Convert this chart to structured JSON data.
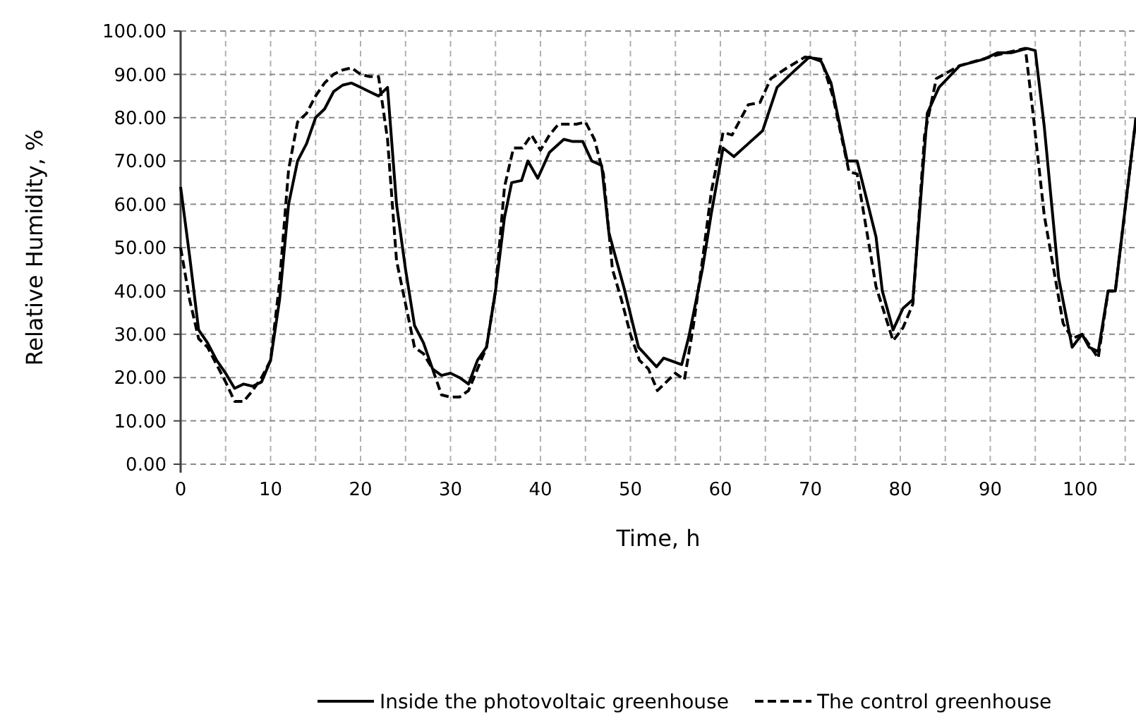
{
  "chart_data": {
    "type": "line",
    "xlabel": "Time, h",
    "ylabel": "Relative Humidity, %",
    "xlim": [
      0,
      106.2
    ],
    "ylim": [
      0,
      100
    ],
    "xticks": [
      0,
      {
        "value": 5,
        "label": null
      },
      10,
      {
        "value": 15,
        "label": null
      },
      20,
      {
        "value": 25,
        "label": null
      },
      30,
      {
        "value": 35,
        "label": null
      },
      40,
      {
        "value": 45,
        "label": null
      },
      50,
      {
        "value": 55,
        "label": null
      },
      60,
      {
        "value": 65,
        "label": null
      },
      70,
      {
        "value": 75,
        "label": null
      },
      80,
      {
        "value": 85,
        "label": null
      },
      90,
      {
        "value": 95,
        "label": null
      },
      100,
      {
        "value": 105,
        "label": null
      }
    ],
    "yticks": [
      {
        "value": 0,
        "label": "0.00"
      },
      {
        "value": 10,
        "label": "10.00"
      },
      {
        "value": 20,
        "label": "20.00"
      },
      {
        "value": 30,
        "label": "30.00"
      },
      {
        "value": 40,
        "label": "40.00"
      },
      {
        "value": 50,
        "label": "50.00"
      },
      {
        "value": 60,
        "label": "60.00"
      },
      {
        "value": 70,
        "label": "70.00"
      },
      {
        "value": 80,
        "label": "80.00"
      },
      {
        "value": 90,
        "label": "90.00"
      },
      {
        "value": 100,
        "label": "100.00"
      }
    ],
    "grid": true,
    "legend": "bottom",
    "marker": "none",
    "series": [
      {
        "name": "Inside the photovoltaic greenhouse",
        "color": "#000000",
        "line_style": "solid",
        "x": [
          0,
          1,
          2,
          3,
          4,
          5,
          6,
          7,
          8,
          9,
          10,
          11,
          12,
          13,
          14,
          15,
          16,
          17,
          18,
          19,
          20,
          21,
          22,
          23,
          24,
          25,
          26,
          27,
          28,
          29,
          30,
          31,
          32,
          33,
          34,
          35,
          36,
          36.8,
          37.9,
          38.6,
          39.7,
          41,
          42.6,
          43.6,
          44.7,
          45.7,
          46.8,
          47.6,
          49.3,
          50.9,
          52.9,
          53.7,
          55.7,
          56.5,
          58,
          59,
          60.3,
          61.5,
          63.1,
          64.7,
          66.3,
          67.8,
          69.9,
          71.2,
          72.3,
          73.1,
          74.1,
          75.2,
          77.3,
          78,
          79.2,
          80.3,
          81.4,
          83,
          84.3,
          86.6,
          89.3,
          90.8,
          92.4,
          94.1,
          95,
          96,
          97.6,
          99.1,
          100.2,
          101,
          102,
          103.1,
          103.9,
          106.2
        ],
        "values": [
          64,
          48,
          31,
          28,
          24,
          21,
          17.5,
          18.5,
          18,
          19,
          24,
          38,
          60,
          70,
          74,
          80,
          82,
          86,
          87.5,
          88,
          87,
          86,
          85,
          87,
          60,
          45,
          32,
          28,
          22,
          20.5,
          21,
          20,
          18.5,
          24,
          27,
          40,
          57,
          65,
          65.5,
          70,
          66,
          72,
          75,
          74.5,
          74.5,
          70,
          69,
          53.5,
          40.6,
          27,
          22.5,
          24.5,
          23,
          29.5,
          45,
          58,
          73,
          71,
          74,
          77,
          87,
          90,
          94,
          93,
          88,
          80,
          70,
          70,
          52.5,
          40,
          31,
          36,
          38,
          81,
          87,
          92,
          93.5,
          95,
          95,
          96,
          95.5,
          78,
          43,
          27,
          30,
          27,
          26,
          40,
          40,
          80
        ]
      },
      {
        "name": "The control greenhouse",
        "color": "#000000",
        "line_style": "dashed",
        "x": [
          0,
          1,
          2,
          3,
          4,
          5,
          6,
          7,
          8,
          9,
          10,
          11,
          12,
          13,
          14,
          15,
          16,
          17,
          18,
          19,
          20,
          21,
          22,
          23,
          24,
          25,
          26,
          27,
          28,
          29,
          30,
          31,
          32,
          33,
          34,
          35,
          36,
          37,
          38,
          39,
          40,
          41,
          42,
          43,
          44,
          45,
          46,
          47,
          48,
          49,
          50,
          51,
          52,
          53,
          54,
          55,
          56,
          57,
          58,
          59,
          60.3,
          61.3,
          63.1,
          64.4,
          65.6,
          67.4,
          69.4,
          71.2,
          72.5,
          74.3,
          75.2,
          77.3,
          79.2,
          80.3,
          81.4,
          82.7,
          84,
          86.6,
          90.8,
          93.9,
          94.7,
          96,
          98.1,
          99.1,
          100.2,
          101.2,
          102,
          103.1,
          103.9,
          106.2
        ],
        "values": [
          50,
          38,
          29,
          27,
          23,
          19,
          14.5,
          14.5,
          17,
          20,
          24,
          42,
          68,
          79,
          81,
          85,
          88,
          90,
          91,
          91.5,
          90,
          89.5,
          89.5,
          75,
          47,
          37,
          27,
          25.5,
          22,
          16,
          15.5,
          15.5,
          17,
          22,
          27,
          40,
          64,
          73,
          73,
          76,
          72.5,
          76,
          78.5,
          78.5,
          78.5,
          79,
          75,
          67,
          45,
          38,
          30,
          24,
          22,
          17,
          19,
          21,
          19.5,
          32,
          47,
          63,
          76.6,
          76,
          83,
          83.5,
          89,
          91.5,
          94,
          93.5,
          85,
          67.5,
          67,
          41,
          28.5,
          31.5,
          37,
          76,
          89,
          92,
          94.5,
          96,
          82,
          57.5,
          32.5,
          29,
          30,
          27,
          24.5,
          40,
          40,
          80
        ]
      }
    ]
  }
}
